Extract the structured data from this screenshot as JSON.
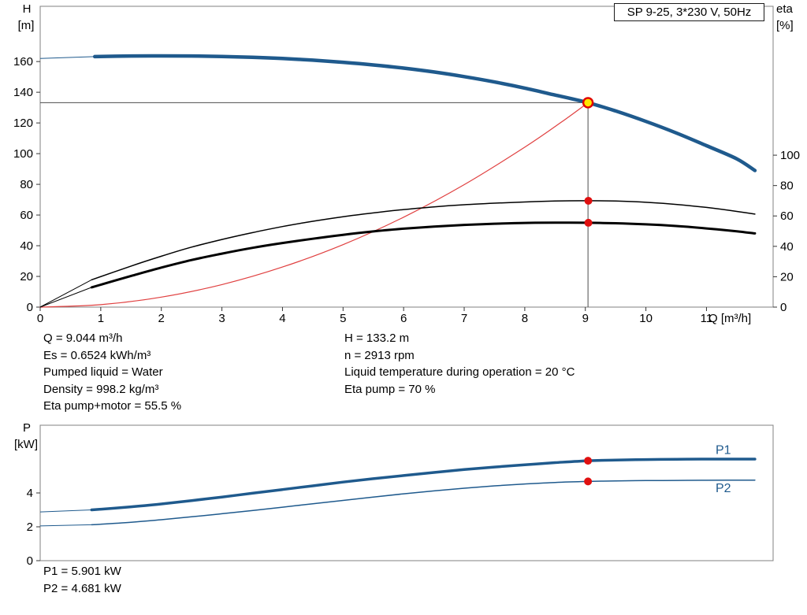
{
  "colors": {
    "blue": "#1f5a8d",
    "black": "#000000",
    "red": "#e04040",
    "frame": "#808080",
    "tick": "#333333",
    "crosshair": "#4d4d4d",
    "duty_fill": "#ffe600",
    "duty_stroke": "#e00000",
    "marker": "#e01010"
  },
  "results": {
    "left": [
      "Q = 9.044 m³/h",
      "Es = 0.6524 kWh/m³",
      "Pumped liquid = Water",
      "Density = 998.2 kg/m³",
      "Eta pump+motor = 55.5 %"
    ],
    "right": [
      "H = 133.2 m",
      "n = 2913 rpm",
      "Liquid temperature during operation = 20 °C",
      "Eta pump = 70 %"
    ],
    "power": [
      "P1 = 5.901 kW",
      "P2 = 4.681 kW"
    ]
  },
  "chart_data": [
    {
      "id": "hq-eta-chart",
      "type": "line",
      "title": "SP 9-25, 3*230 V, 50Hz",
      "x_axis": {
        "label": "Q [m³/h]",
        "min": 0,
        "max": 12.1,
        "ticks": [
          0,
          1,
          2,
          3,
          4,
          5,
          6,
          7,
          8,
          9,
          10,
          11
        ]
      },
      "y_left": {
        "name": "H",
        "unit": "[m]",
        "min": 0,
        "max": 196,
        "ticks": [
          0,
          20,
          40,
          60,
          80,
          100,
          120,
          140,
          160
        ]
      },
      "y_right": {
        "name": "eta",
        "unit": "[%]",
        "min": 0,
        "max": 198,
        "ticks": [
          0,
          20,
          40,
          60,
          80,
          100
        ]
      },
      "crosshair": {
        "Q": 9.044,
        "H": 133.2
      },
      "duty_point": {
        "Q": 9.044,
        "H": 133.2,
        "eta_pump": 70,
        "eta_pump_motor": 55.5
      },
      "series": [
        {
          "name": "system-curve",
          "axis": "left",
          "color": "red",
          "width": 1.2,
          "points": [
            [
              0,
              0
            ],
            [
              1,
              1.6
            ],
            [
              2,
              6.5
            ],
            [
              3,
              14.7
            ],
            [
              4,
              26.1
            ],
            [
              5,
              40.7
            ],
            [
              6,
              58.6
            ],
            [
              7,
              79.8
            ],
            [
              8,
              104.2
            ],
            [
              8.6,
              120.4
            ],
            [
              9.044,
              133.2
            ]
          ]
        },
        {
          "name": "eta-pump",
          "axis": "right",
          "color": "black",
          "width": 1.5,
          "lead": [
            [
              0,
              0
            ],
            [
              0.85,
              18
            ]
          ],
          "points": [
            [
              0.85,
              18
            ],
            [
              1.5,
              27
            ],
            [
              2,
              33.5
            ],
            [
              2.5,
              39.5
            ],
            [
              3,
              44.5
            ],
            [
              3.5,
              49
            ],
            [
              4,
              53
            ],
            [
              4.5,
              56.5
            ],
            [
              5,
              59.5
            ],
            [
              5.5,
              62
            ],
            [
              6,
              64.2
            ],
            [
              6.5,
              66
            ],
            [
              7,
              67.4
            ],
            [
              7.5,
              68.4
            ],
            [
              8,
              69.2
            ],
            [
              8.5,
              69.8
            ],
            [
              9.044,
              70
            ],
            [
              9.5,
              69.8
            ],
            [
              10,
              69
            ],
            [
              10.5,
              67.6
            ],
            [
              11,
              65.6
            ],
            [
              11.5,
              63
            ],
            [
              11.8,
              61.2
            ]
          ]
        },
        {
          "name": "eta-pump-motor",
          "axis": "right",
          "color": "black",
          "width": 3,
          "lead": [
            [
              0,
              0
            ],
            [
              0.85,
              13
            ]
          ],
          "points": [
            [
              0.85,
              13
            ],
            [
              1.5,
              20.5
            ],
            [
              2,
              26
            ],
            [
              2.5,
              31
            ],
            [
              3,
              35.2
            ],
            [
              3.5,
              39
            ],
            [
              4,
              42.2
            ],
            [
              4.5,
              45
            ],
            [
              5,
              47.6
            ],
            [
              5.5,
              49.8
            ],
            [
              6,
              51.6
            ],
            [
              6.5,
              53
            ],
            [
              7,
              54.1
            ],
            [
              7.5,
              54.9
            ],
            [
              8,
              55.4
            ],
            [
              8.5,
              55.6
            ],
            [
              9.044,
              55.5
            ],
            [
              9.5,
              55.2
            ],
            [
              10,
              54.5
            ],
            [
              10.5,
              53.4
            ],
            [
              11,
              51.8
            ],
            [
              11.5,
              49.9
            ],
            [
              11.8,
              48.5
            ]
          ]
        },
        {
          "name": "head-curve",
          "axis": "left",
          "color": "blue",
          "width": 4.5,
          "lead": [
            [
              0,
              162
            ],
            [
              0.9,
              163.2
            ]
          ],
          "points": [
            [
              0.9,
              163.2
            ],
            [
              1.5,
              163.6
            ],
            [
              2,
              163.7
            ],
            [
              2.5,
              163.6
            ],
            [
              3,
              163.3
            ],
            [
              3.5,
              162.8
            ],
            [
              4,
              162
            ],
            [
              4.5,
              160.9
            ],
            [
              5,
              159.5
            ],
            [
              5.5,
              157.8
            ],
            [
              6,
              155.7
            ],
            [
              6.5,
              153.2
            ],
            [
              7,
              150.2
            ],
            [
              7.5,
              146.7
            ],
            [
              8,
              142.7
            ],
            [
              8.5,
              138.2
            ],
            [
              9.044,
              133.2
            ],
            [
              9.5,
              127.8
            ],
            [
              10,
              121
            ],
            [
              10.5,
              113.5
            ],
            [
              11,
              105.2
            ],
            [
              11.5,
              96.6
            ],
            [
              11.8,
              89
            ]
          ]
        }
      ],
      "markers": [
        {
          "name": "eta-pump-duty-dot",
          "axis": "right",
          "Q": 9.05,
          "v": 70,
          "r": 5,
          "fill": "marker"
        },
        {
          "name": "eta-pump-motor-duty-dot",
          "axis": "right",
          "Q": 9.05,
          "v": 55.5,
          "r": 5,
          "fill": "marker"
        },
        {
          "name": "duty-point-marker",
          "axis": "left",
          "Q": 9.044,
          "v": 133.2,
          "r": 6,
          "fill": "duty_fill",
          "stroke": "duty_stroke",
          "sw": 2.4
        }
      ],
      "labels": []
    },
    {
      "id": "power-chart",
      "type": "line",
      "title": "",
      "x_axis": {
        "label": "Q [m³/h]",
        "min": 0,
        "max": 12.1,
        "ticks": [
          0,
          1,
          2,
          3,
          4,
          5,
          6,
          7,
          8,
          9,
          10,
          11
        ]
      },
      "y_left": {
        "name": "P",
        "unit": "[kW]",
        "min": 0,
        "max": 8,
        "ticks": [
          0,
          2,
          4
        ]
      },
      "duty_point": {
        "Q": 9.044,
        "P1": 5.901,
        "P2": 4.681
      },
      "series": [
        {
          "name": "P1",
          "axis": "left",
          "color": "blue",
          "width": 3.5,
          "lead": [
            [
              0,
              2.88
            ],
            [
              0.85,
              3.0
            ]
          ],
          "points": [
            [
              0.85,
              3.0
            ],
            [
              1.5,
              3.18
            ],
            [
              2,
              3.35
            ],
            [
              2.5,
              3.55
            ],
            [
              3,
              3.76
            ],
            [
              3.5,
              3.98
            ],
            [
              4,
              4.2
            ],
            [
              4.5,
              4.42
            ],
            [
              5,
              4.64
            ],
            [
              5.5,
              4.84
            ],
            [
              6,
              5.03
            ],
            [
              6.5,
              5.21
            ],
            [
              7,
              5.38
            ],
            [
              7.5,
              5.53
            ],
            [
              8,
              5.66
            ],
            [
              8.5,
              5.79
            ],
            [
              9.044,
              5.9
            ],
            [
              9.5,
              5.94
            ],
            [
              10,
              5.97
            ],
            [
              10.5,
              5.99
            ],
            [
              11,
              6.0
            ],
            [
              11.8,
              6.0
            ]
          ]
        },
        {
          "name": "P2",
          "axis": "left",
          "color": "blue",
          "width": 1.5,
          "lead": [
            [
              0,
              2.05
            ],
            [
              0.85,
              2.12
            ]
          ],
          "points": [
            [
              0.85,
              2.12
            ],
            [
              1.5,
              2.27
            ],
            [
              2,
              2.42
            ],
            [
              2.5,
              2.59
            ],
            [
              3,
              2.77
            ],
            [
              3.5,
              2.96
            ],
            [
              4,
              3.16
            ],
            [
              4.5,
              3.36
            ],
            [
              5,
              3.56
            ],
            [
              5.5,
              3.76
            ],
            [
              6,
              3.95
            ],
            [
              6.5,
              4.12
            ],
            [
              7,
              4.28
            ],
            [
              7.5,
              4.42
            ],
            [
              8,
              4.53
            ],
            [
              8.5,
              4.62
            ],
            [
              9.044,
              4.68
            ],
            [
              9.5,
              4.71
            ],
            [
              10,
              4.73
            ],
            [
              10.5,
              4.74
            ],
            [
              11,
              4.75
            ],
            [
              11.8,
              4.76
            ]
          ]
        }
      ],
      "markers": [
        {
          "name": "p1-duty-dot",
          "axis": "left",
          "Q": 9.044,
          "v": 5.9,
          "r": 5,
          "fill": "marker"
        },
        {
          "name": "p2-duty-dot",
          "axis": "left",
          "Q": 9.044,
          "v": 4.68,
          "r": 5,
          "fill": "marker"
        }
      ],
      "labels": [
        {
          "text": "P1",
          "Q": 11.15,
          "v": 6.3,
          "color": "blue"
        },
        {
          "text": "P2",
          "Q": 11.15,
          "v": 4.05,
          "color": "blue"
        }
      ]
    }
  ]
}
